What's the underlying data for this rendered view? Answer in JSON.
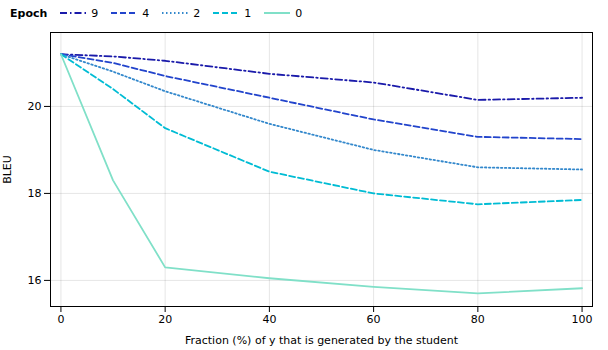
{
  "chart_data": {
    "type": "line",
    "xlabel": "Fraction (%) of y that is generated by the student",
    "ylabel": "BLEU",
    "legend_title": "Epoch",
    "x": [
      0,
      10,
      20,
      40,
      60,
      80,
      100
    ],
    "series": [
      {
        "name": "9",
        "color": "#1a1aaa",
        "line_style": "dashdot",
        "values": [
          21.2,
          21.15,
          21.05,
          20.75,
          20.55,
          20.15,
          20.2
        ]
      },
      {
        "name": "4",
        "color": "#2244cc",
        "line_style": "dashed",
        "values": [
          21.2,
          21.0,
          20.7,
          20.2,
          19.7,
          19.3,
          19.25
        ]
      },
      {
        "name": "2",
        "color": "#3388cc",
        "line_style": "dotted",
        "values": [
          21.2,
          20.8,
          20.35,
          19.6,
          19.0,
          18.6,
          18.55
        ]
      },
      {
        "name": "1",
        "color": "#00bcd4",
        "line_style": "dashed",
        "values": [
          21.2,
          20.4,
          19.5,
          18.5,
          18.0,
          17.75,
          17.85
        ]
      },
      {
        "name": "0",
        "color": "#80e0c8",
        "line_style": "solid",
        "values": [
          21.2,
          18.3,
          16.3,
          16.05,
          15.85,
          15.7,
          15.82
        ]
      }
    ],
    "xlim": [
      -2,
      102
    ],
    "ylim": [
      15.4,
      21.7
    ],
    "xticks": [
      0,
      20,
      40,
      60,
      80,
      100
    ],
    "yticks": [
      16,
      18,
      20
    ],
    "grid": true,
    "legend": "upper left"
  }
}
